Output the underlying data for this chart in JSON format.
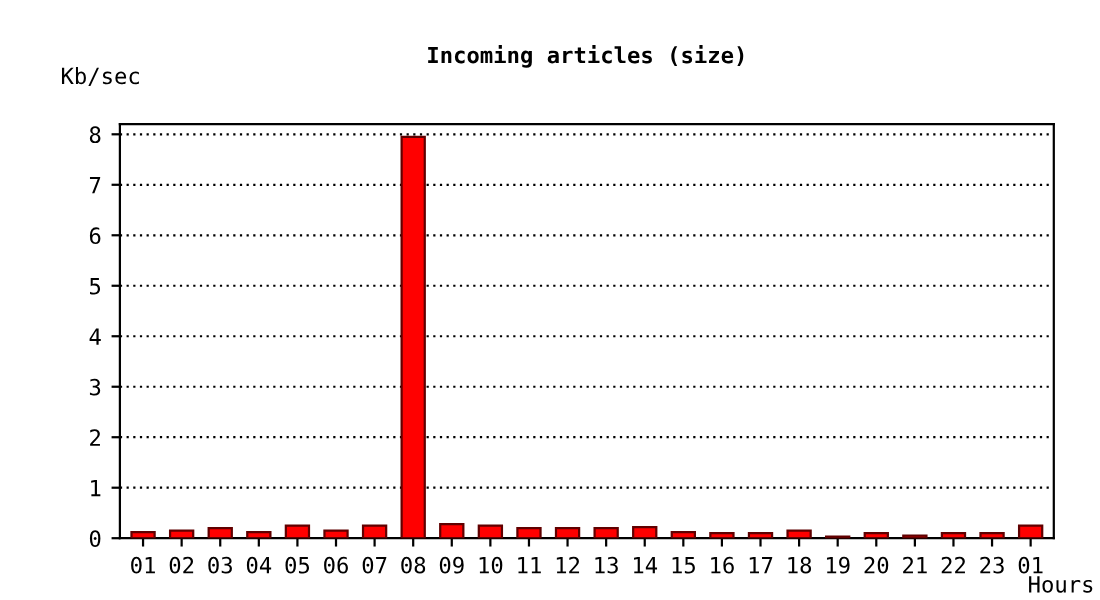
{
  "chart_data": {
    "type": "bar",
    "title": "Incoming articles (size)",
    "ylabel": "Kb/sec",
    "xlabel": "Hours",
    "categories": [
      "01",
      "02",
      "03",
      "04",
      "05",
      "06",
      "07",
      "08",
      "09",
      "10",
      "11",
      "12",
      "13",
      "14",
      "15",
      "16",
      "17",
      "18",
      "19",
      "20",
      "21",
      "22",
      "23",
      "01"
    ],
    "values": [
      0.12,
      0.15,
      0.2,
      0.12,
      0.25,
      0.15,
      0.25,
      7.95,
      0.28,
      0.25,
      0.2,
      0.2,
      0.2,
      0.22,
      0.12,
      0.1,
      0.1,
      0.15,
      0.03,
      0.1,
      0.05,
      0.1,
      0.1,
      0.25
    ],
    "color": "#ff0000",
    "ylim": [
      0,
      8.2
    ],
    "yticks": [
      0,
      1,
      2,
      3,
      4,
      5,
      6,
      7,
      8
    ],
    "grid": "y"
  }
}
